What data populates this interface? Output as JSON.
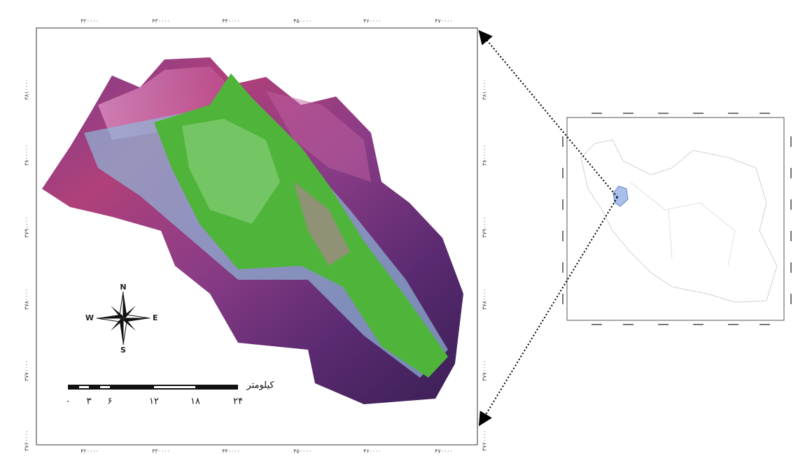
{
  "main_map": {
    "x_ticks": [
      "۴۲۰۰۰۰",
      "۴۳۰۰۰۰",
      "۴۴۰۰۰۰",
      "۴۵۰۰۰۰",
      "۴۶۰۰۰۰",
      "۴۷۰۰۰۰"
    ],
    "y_ticks": [
      "۳۸۱۰۰۰۰",
      "۳۸۰۰۰۰۰",
      "۳۷۹۰۰۰۰",
      "۳۷۸۰۰۰۰",
      "۳۷۷۰۰۰۰",
      "۳۷۶۰۰۰۰"
    ],
    "compass": {
      "n": "N",
      "e": "E",
      "s": "S",
      "w": "W"
    },
    "scale_bar": {
      "unit": "کیلومتر",
      "labels": [
        "۰",
        "۳",
        "۶",
        "۱۲",
        "۱۸",
        "۲۴"
      ]
    }
  }
}
